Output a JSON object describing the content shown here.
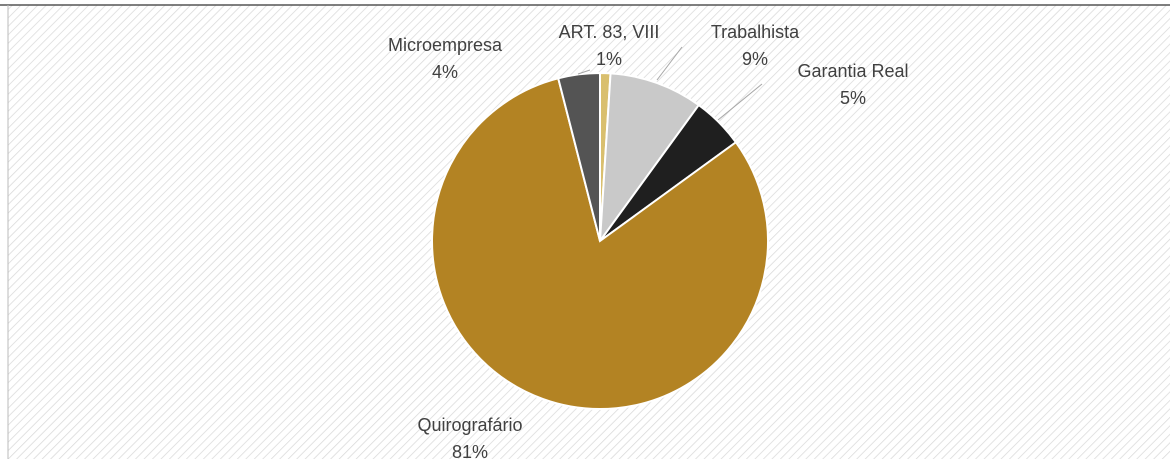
{
  "chart_data": {
    "type": "pie",
    "categories": [
      "ART. 83, VIII",
      "Trabalhista",
      "Garantia Real",
      "Quirografário",
      "Microempresa"
    ],
    "values": [
      1,
      9,
      5,
      81,
      4
    ],
    "value_labels": [
      "1%",
      "9%",
      "5%",
      "81%",
      "4%"
    ],
    "colors": [
      "#d9bf6e",
      "#c9c9c9",
      "#1f1f1f",
      "#b38323",
      "#545454"
    ]
  }
}
